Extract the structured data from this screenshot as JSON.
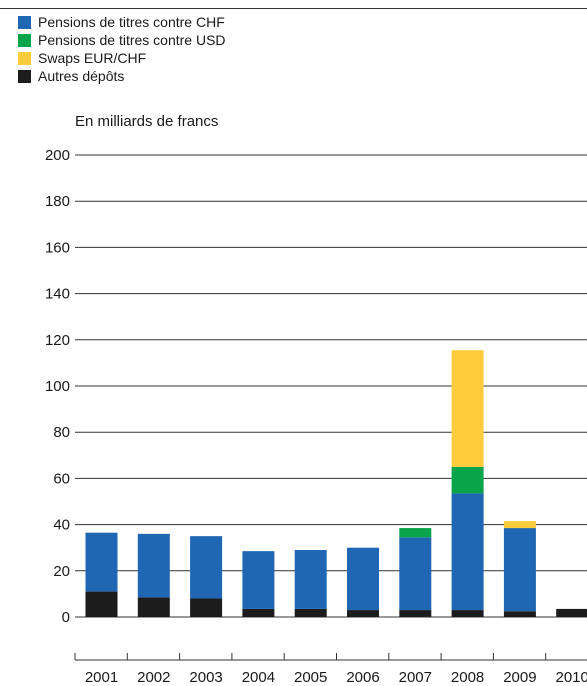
{
  "colors": {
    "chf_repo": "#1f66b3",
    "usd_repo": "#0aa54a",
    "eur_chf_swaps": "#ffcc3c",
    "other_deposits": "#1c1c1c"
  },
  "legend": [
    {
      "label": "Pensions de titres contre CHF",
      "color_key": "chf_repo"
    },
    {
      "label": "Pensions de titres contre USD",
      "color_key": "usd_repo"
    },
    {
      "label": "Swaps EUR/CHF",
      "color_key": "eur_chf_swaps"
    },
    {
      "label": "Autres dépôts",
      "color_key": "other_deposits"
    }
  ],
  "chart_data": {
    "type": "bar",
    "stacked": true,
    "unit_label": "En milliards de francs",
    "categories": [
      "2001",
      "2002",
      "2003",
      "2004",
      "2005",
      "2006",
      "2007",
      "2008",
      "2009",
      "2010"
    ],
    "series": [
      {
        "name": "Autres dépôts",
        "color_key": "other_deposits",
        "values": [
          11,
          8.5,
          8,
          3.5,
          3.5,
          3,
          3,
          3,
          2.5,
          3.5
        ]
      },
      {
        "name": "Pensions de titres contre CHF",
        "color_key": "chf_repo",
        "values": [
          25.5,
          27.5,
          27,
          25,
          25.5,
          27,
          31.5,
          50.5,
          36,
          0
        ]
      },
      {
        "name": "Pensions de titres contre USD",
        "color_key": "usd_repo",
        "values": [
          0,
          0,
          0,
          0,
          0,
          0,
          4,
          11.5,
          0,
          0
        ]
      },
      {
        "name": "Swaps EUR/CHF",
        "color_key": "eur_chf_swaps",
        "values": [
          0,
          0,
          0,
          0,
          0,
          0,
          0,
          50.5,
          3,
          0
        ]
      }
    ],
    "y_ticks": [
      "0",
      "20",
      "40",
      "60",
      "80",
      "100",
      "120",
      "140",
      "160",
      "180",
      "200"
    ],
    "ylim": [
      0,
      200
    ],
    "grid": true,
    "legend_position": "top-left"
  }
}
